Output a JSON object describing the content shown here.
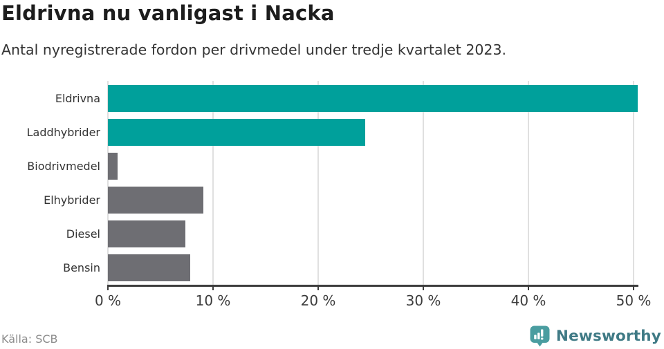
{
  "header": {
    "title": "Eldrivna nu vanligast i Nacka",
    "subtitle": "Antal nyregistrerade fordon per drivmedel under tredje kvartalet 2023."
  },
  "chart_data": {
    "type": "bar",
    "orientation": "horizontal",
    "title": "Eldrivna nu vanligast i Nacka",
    "subtitle": "Antal nyregistrerade fordon per drivmedel under tredje kvartalet 2023.",
    "categories": [
      "Eldrivna",
      "Laddhybrider",
      "Biodrivmedel",
      "Elhybrider",
      "Diesel",
      "Bensin"
    ],
    "values": [
      50.4,
      24.5,
      0.9,
      9.1,
      7.4,
      7.8
    ],
    "unit": "%",
    "bar_colors": [
      "#00a09b",
      "#00a09b",
      "#6e6e73",
      "#6e6e73",
      "#6e6e73",
      "#6e6e73"
    ],
    "x_ticks": [
      0,
      10,
      20,
      30,
      40,
      50
    ],
    "x_tick_labels": [
      "0 %",
      "10 %",
      "20 %",
      "30 %",
      "40 %",
      "50 %"
    ],
    "xlim": [
      0,
      50.4
    ],
    "grid": true,
    "legend": false
  },
  "footer": {
    "source": "Källa: SCB",
    "brand": "Newsworthy"
  },
  "colors": {
    "accent_teal": "#00a09b",
    "bar_gray": "#6e6e73",
    "axis": "#3d3d3d",
    "gridline": "#e0e0e0",
    "title_text": "#1d1d1d",
    "muted_text": "#8c8c8c",
    "logo_bubble": "#4a9da0",
    "logo_text": "#3f7a85"
  }
}
